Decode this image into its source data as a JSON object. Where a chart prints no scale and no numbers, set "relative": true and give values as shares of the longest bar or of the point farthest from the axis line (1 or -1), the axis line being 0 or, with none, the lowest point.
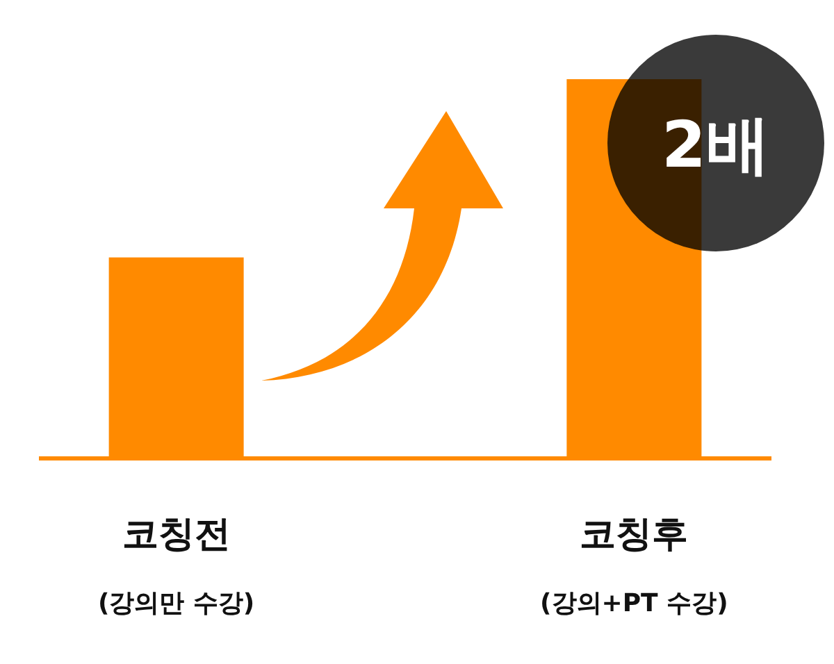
{
  "chart_data": {
    "type": "bar",
    "relative": true,
    "categories": [
      "코칭전\n(강의만 수강)",
      "코칭후\n(강의+PT 수강)"
    ],
    "values": [
      0.53,
      1
    ],
    "color": "#ff8a00",
    "annotations": [
      "2배"
    ]
  }
}
